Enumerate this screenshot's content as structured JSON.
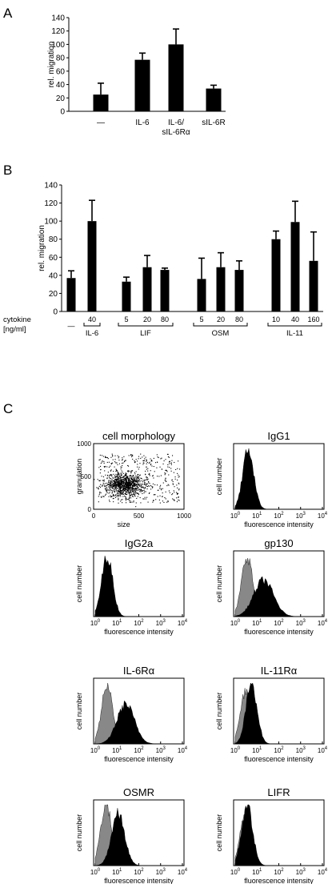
{
  "panel_letters": {
    "a": "A",
    "b": "B",
    "c": "C"
  },
  "chart_data": [
    {
      "type": "bar",
      "panel": "A",
      "ylabel": "rel. migration",
      "ylim": [
        0,
        140
      ],
      "yticks": [
        0,
        20,
        40,
        60,
        80,
        100,
        120,
        140
      ],
      "categories": [
        "—",
        "IL-6",
        "IL-6/ sIL-6Rα",
        "sIL-6R"
      ],
      "category_lines": [
        [
          "—"
        ],
        [
          "IL-6"
        ],
        [
          "IL-6/",
          "sIL-6Rα"
        ],
        [
          "sIL-6R"
        ]
      ],
      "values": [
        25,
        77,
        100,
        34
      ],
      "errors": [
        17,
        10,
        23,
        5
      ]
    },
    {
      "type": "bar",
      "panel": "B",
      "ylabel": "rel. migration",
      "ylim": [
        0,
        140
      ],
      "yticks": [
        0,
        20,
        40,
        60,
        80,
        100,
        120,
        140
      ],
      "xlabel_lines": [
        "cytokine",
        "[ng/ml]"
      ],
      "categories": [
        "—",
        "40",
        "5",
        "20",
        "80",
        "5",
        "20",
        "80",
        "10",
        "40",
        "160"
      ],
      "values": [
        37,
        100,
        33,
        49,
        46,
        36,
        49,
        46,
        80,
        99,
        56
      ],
      "errors": [
        8,
        23,
        5,
        13,
        2,
        23,
        16,
        10,
        9,
        23,
        32
      ],
      "groups": [
        {
          "name": "IL-6",
          "from": 1,
          "to": 1
        },
        {
          "name": "LIF",
          "from": 2,
          "to": 4
        },
        {
          "name": "OSM",
          "from": 5,
          "to": 7
        },
        {
          "name": "IL-11",
          "from": 8,
          "to": 10
        }
      ]
    },
    {
      "type": "scatter",
      "panel": "C",
      "title": "cell morphology",
      "xlabel": "size",
      "ylabel": "granulation",
      "xlim": [
        0,
        1000
      ],
      "ylim": [
        0,
        1000
      ],
      "xticks": [
        0,
        500,
        1000
      ],
      "yticks": [
        0,
        500,
        1000
      ],
      "xtick_labels": [
        "0",
        "500",
        "1000"
      ],
      "ytick_labels": [
        "0",
        "500",
        "1000"
      ],
      "cluster": {
        "center_x": 350,
        "center_y": 380,
        "spread_x": 110,
        "spread_y": 90
      }
    },
    {
      "type": "area",
      "panel": "C",
      "title": "IgG1",
      "xlabel": "fluorescence intensity",
      "ylabel": "cell number",
      "x_scale": "log",
      "xticks": [
        "10^0",
        "10^1",
        "10^2",
        "10^3",
        "10^4"
      ],
      "series": [
        {
          "color": "#000000",
          "peak_log10": 0.6,
          "width_log10": 0.25,
          "height": 1.0
        }
      ]
    },
    {
      "type": "area",
      "panel": "C",
      "title": "IgG2a",
      "xlabel": "fluorescence intensity",
      "ylabel": "cell number",
      "x_scale": "log",
      "xticks": [
        "10^0",
        "10^1",
        "10^2",
        "10^3",
        "10^4"
      ],
      "series": [
        {
          "color": "#000000",
          "peak_log10": 0.55,
          "width_log10": 0.25,
          "height": 1.0
        }
      ]
    },
    {
      "type": "area",
      "panel": "C",
      "title": "gp130",
      "xlabel": "fluorescence intensity",
      "ylabel": "cell number",
      "x_scale": "log",
      "xticks": [
        "10^0",
        "10^1",
        "10^2",
        "10^3",
        "10^4"
      ],
      "series": [
        {
          "color": "#888888",
          "peak_log10": 0.55,
          "width_log10": 0.25,
          "height": 1.0
        },
        {
          "color": "#000000",
          "peak_log10": 1.3,
          "width_log10": 0.45,
          "height": 0.6
        }
      ]
    },
    {
      "type": "area",
      "panel": "C",
      "title": "IL-6Rα",
      "xlabel": "fluorescence intensity",
      "ylabel": "cell number",
      "x_scale": "log",
      "xticks": [
        "10^0",
        "10^1",
        "10^2",
        "10^3",
        "10^4"
      ],
      "series": [
        {
          "color": "#888888",
          "peak_log10": 0.55,
          "width_log10": 0.25,
          "height": 1.0
        },
        {
          "color": "#000000",
          "peak_log10": 1.4,
          "width_log10": 0.4,
          "height": 0.65
        }
      ]
    },
    {
      "type": "area",
      "panel": "C",
      "title": "IL-11Rα",
      "xlabel": "fluorescence intensity",
      "ylabel": "cell number",
      "x_scale": "log",
      "xticks": [
        "10^0",
        "10^1",
        "10^2",
        "10^3",
        "10^4"
      ],
      "series": [
        {
          "color": "#888888",
          "peak_log10": 0.5,
          "width_log10": 0.25,
          "height": 0.9
        },
        {
          "color": "#000000",
          "peak_log10": 0.75,
          "width_log10": 0.25,
          "height": 1.0
        }
      ]
    },
    {
      "type": "area",
      "panel": "C",
      "title": "OSMR",
      "xlabel": "fluorescence intensity",
      "ylabel": "cell number",
      "x_scale": "log",
      "xticks": [
        "10^0",
        "10^1",
        "10^2",
        "10^3",
        "10^4"
      ],
      "series": [
        {
          "color": "#888888",
          "peak_log10": 0.5,
          "width_log10": 0.25,
          "height": 1.0
        },
        {
          "color": "#000000",
          "peak_log10": 1.05,
          "width_log10": 0.3,
          "height": 0.85
        }
      ]
    },
    {
      "type": "area",
      "panel": "C",
      "title": "LIFR",
      "xlabel": "fluorescence intensity",
      "ylabel": "cell number",
      "x_scale": "log",
      "xticks": [
        "10^0",
        "10^1",
        "10^2",
        "10^3",
        "10^4"
      ],
      "series": [
        {
          "color": "#888888",
          "peak_log10": 0.5,
          "width_log10": 0.25,
          "height": 0.95
        },
        {
          "color": "#000000",
          "peak_log10": 0.55,
          "width_log10": 0.25,
          "height": 1.0
        }
      ]
    }
  ]
}
